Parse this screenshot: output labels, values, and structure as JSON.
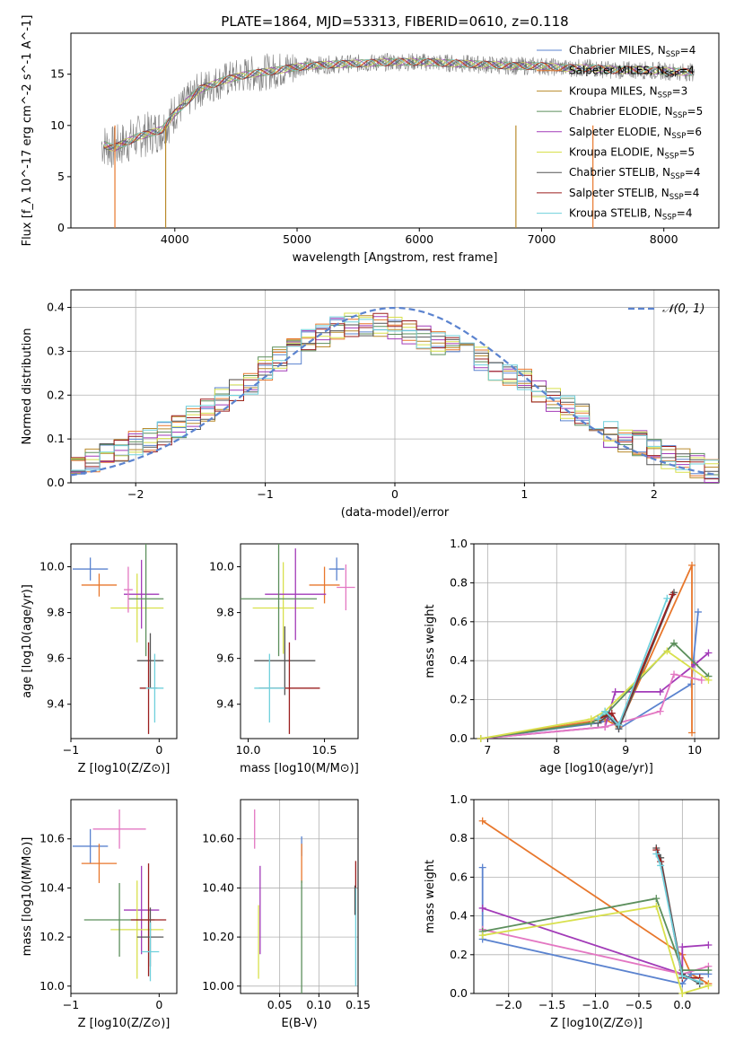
{
  "chart_data": [
    {
      "type": "line",
      "title": "PLATE=1864, MJD=53313, FIBERID=0610, z=0.118",
      "xlabel": "wavelength [Angstrom, rest frame]",
      "ylabel": "Flux [f_λ 10^-17 erg cm^-2 s^-1 A^-1]",
      "xlim": [
        3150,
        8450
      ],
      "ylim": [
        0,
        19
      ],
      "xticks": [
        4000,
        5000,
        6000,
        7000,
        8000
      ],
      "yticks": [
        0,
        5,
        10,
        15
      ],
      "legend_position": "right",
      "data_shape": {
        "x": [
          3400,
          3500,
          3700,
          3900,
          4000,
          4200,
          4400,
          4600,
          4800,
          5000,
          5200,
          5400,
          5600,
          5800,
          6000,
          6200,
          6400,
          6600,
          6800,
          7000,
          7200,
          7400,
          7600,
          7800,
          8000,
          8200
        ],
        "y": [
          8.2,
          7.8,
          8.9,
          9.6,
          11.2,
          13.5,
          14.4,
          15.0,
          15.3,
          15.7,
          15.9,
          16.0,
          16.1,
          16.2,
          16.2,
          16.1,
          16.0,
          15.9,
          15.8,
          15.8,
          15.6,
          15.6,
          15.4,
          15.4,
          15.3,
          15.2
        ]
      },
      "legend": [
        {
          "main": "Chabrier MILES, N",
          "sub": "SSP",
          "tail": "=4",
          "color": "#5b83cf"
        },
        {
          "main": "Salpeter MILES, N",
          "sub": "SSP",
          "tail": "=4",
          "color": "#e8772c"
        },
        {
          "main": "Kroupa MILES, N",
          "sub": "SSP",
          "tail": "=3",
          "color": "#b98b2c"
        },
        {
          "main": "Chabrier ELODIE, N",
          "sub": "SSP",
          "tail": "=5",
          "color": "#5c8f5c"
        },
        {
          "main": "Salpeter ELODIE, N",
          "sub": "SSP",
          "tail": "=6",
          "color": "#a23bb8"
        },
        {
          "main": "Kroupa ELODIE, N",
          "sub": "SSP",
          "tail": "=5",
          "color": "#d8e04c"
        },
        {
          "main": "Chabrier STELIB, N",
          "sub": "SSP",
          "tail": "=4",
          "color": "#555555"
        },
        {
          "main": "Salpeter STELIB, N",
          "sub": "SSP",
          "tail": "=4",
          "color": "#9b1f1f"
        },
        {
          "main": "Kroupa STELIB, N",
          "sub": "SSP",
          "tail": "=4",
          "color": "#6fd0dc"
        }
      ]
    },
    {
      "type": "line",
      "xlabel": "(data-model)/error",
      "ylabel": "Normed distribution",
      "xlim": [
        -2.5,
        2.5
      ],
      "ylim": [
        0,
        0.44
      ],
      "xticks": [
        -2,
        -1,
        0,
        1,
        2
      ],
      "yticks": [
        0.0,
        0.1,
        0.2,
        0.3,
        0.4
      ],
      "grid": true,
      "legend_position": "top-right",
      "legend": "𝒩(0, 1)",
      "histogram_center": [
        0.03,
        0.05,
        0.06,
        0.07,
        0.09,
        0.1,
        0.11,
        0.13,
        0.15,
        0.17,
        0.19,
        0.21,
        0.23,
        0.26,
        0.28,
        0.3,
        0.32,
        0.34,
        0.35,
        0.36,
        0.36,
        0.36,
        0.35,
        0.34,
        0.33,
        0.32,
        0.31,
        0.3,
        0.28,
        0.26,
        0.25,
        0.23,
        0.21,
        0.19,
        0.17,
        0.15,
        0.13,
        0.11,
        0.1,
        0.09,
        0.07,
        0.06,
        0.05,
        0.04,
        0.03
      ]
    },
    {
      "type": "scatter",
      "xlabel": "Z [log10(Z/Z⊙)]",
      "ylabel": "age [log10(age/yr)]",
      "xlim": [
        -1.0,
        0.2
      ],
      "ylim": [
        9.25,
        10.1
      ],
      "xticks": [
        -1,
        0
      ],
      "yticks": [
        9.4,
        9.6,
        9.8,
        10.0
      ],
      "points": [
        {
          "x": -0.78,
          "y": 9.99,
          "xerr": 0.2,
          "yerr": 0.05,
          "color": "#5b83cf"
        },
        {
          "x": -0.68,
          "y": 9.92,
          "xerr": 0.2,
          "yerr": 0.05,
          "color": "#e8772c"
        },
        {
          "x": -0.25,
          "y": 9.82,
          "xerr": 0.3,
          "yerr": 0.15,
          "color": "#d8e04c"
        },
        {
          "x": -0.2,
          "y": 9.88,
          "xerr": 0.2,
          "yerr": 0.15,
          "color": "#a23bb8"
        },
        {
          "x": -0.15,
          "y": 9.86,
          "xerr": 0.2,
          "yerr": 0.25,
          "color": "#5c8f5c"
        },
        {
          "x": -0.1,
          "y": 9.59,
          "xerr": 0.15,
          "yerr": 0.12,
          "color": "#555555"
        },
        {
          "x": -0.12,
          "y": 9.47,
          "xerr": 0.1,
          "yerr": 0.2,
          "color": "#9b1f1f"
        },
        {
          "x": -0.05,
          "y": 9.47,
          "xerr": 0.1,
          "yerr": 0.15,
          "color": "#6fd0dc"
        },
        {
          "x": -0.35,
          "y": 9.9,
          "xerr": 0.05,
          "yerr": 0.1,
          "color": "#e377c2"
        }
      ]
    },
    {
      "type": "scatter",
      "xlabel": "mass [log10(M/M⊙)]",
      "xlim": [
        9.95,
        10.72
      ],
      "ylim": [
        9.25,
        10.1
      ],
      "xticks": [
        10.0,
        10.5
      ],
      "yticks": [
        9.4,
        9.6,
        9.8,
        10.0
      ],
      "points": [
        {
          "x": 10.58,
          "y": 9.99,
          "xerr": 0.05,
          "yerr": 0.05,
          "color": "#5b83cf"
        },
        {
          "x": 10.5,
          "y": 9.92,
          "xerr": 0.1,
          "yerr": 0.08,
          "color": "#e8772c"
        },
        {
          "x": 10.23,
          "y": 9.82,
          "xerr": 0.2,
          "yerr": 0.2,
          "color": "#d8e04c"
        },
        {
          "x": 10.31,
          "y": 9.88,
          "xerr": 0.2,
          "yerr": 0.2,
          "color": "#a23bb8"
        },
        {
          "x": 10.2,
          "y": 9.86,
          "xerr": 0.25,
          "yerr": 0.25,
          "color": "#5c8f5c"
        },
        {
          "x": 10.24,
          "y": 9.59,
          "xerr": 0.2,
          "yerr": 0.15,
          "color": "#555555"
        },
        {
          "x": 10.27,
          "y": 9.47,
          "xerr": 0.2,
          "yerr": 0.2,
          "color": "#9b1f1f"
        },
        {
          "x": 10.14,
          "y": 9.47,
          "xerr": 0.1,
          "yerr": 0.15,
          "color": "#6fd0dc"
        },
        {
          "x": 10.64,
          "y": 9.91,
          "xerr": 0.06,
          "yerr": 0.1,
          "color": "#e377c2"
        }
      ]
    },
    {
      "type": "line",
      "xlabel": "age [log10(age/yr)]",
      "ylabel": "mass weight",
      "xlim": [
        6.8,
        10.35
      ],
      "ylim": [
        0,
        1.0
      ],
      "xticks": [
        7,
        8,
        9,
        10
      ],
      "yticks": [
        0.0,
        0.2,
        0.4,
        0.6,
        0.8,
        1.0
      ],
      "grid": true,
      "series": [
        {
          "color": "#5b83cf",
          "x": [
            6.9,
            8.6,
            8.8,
            8.9,
            9.95,
            10.05
          ],
          "y": [
            0.0,
            0.08,
            0.1,
            0.05,
            0.28,
            0.65
          ]
        },
        {
          "color": "#e8772c",
          "x": [
            6.9,
            8.7,
            8.9,
            9.96,
            9.96
          ],
          "y": [
            0.0,
            0.1,
            0.06,
            0.89,
            0.03
          ]
        },
        {
          "color": "#a23bb8",
          "x": [
            6.9,
            8.7,
            8.85,
            9.5,
            10.0,
            10.2
          ],
          "y": [
            0.0,
            0.06,
            0.24,
            0.24,
            0.38,
            0.44
          ]
        },
        {
          "color": "#e377c2",
          "x": [
            6.9,
            8.7,
            9.5,
            9.7,
            10.1
          ],
          "y": [
            0.0,
            0.06,
            0.14,
            0.33,
            0.3
          ]
        },
        {
          "color": "#5c8f5c",
          "x": [
            6.9,
            8.5,
            8.7,
            9.7,
            10.2
          ],
          "y": [
            0.0,
            0.08,
            0.12,
            0.49,
            0.32
          ]
        },
        {
          "color": "#d8e04c",
          "x": [
            6.9,
            8.5,
            8.7,
            9.6,
            10.2
          ],
          "y": [
            0.0,
            0.1,
            0.14,
            0.45,
            0.3
          ]
        },
        {
          "color": "#555555",
          "x": [
            8.6,
            8.75,
            8.9,
            9.7
          ],
          "y": [
            0.08,
            0.12,
            0.05,
            0.75
          ]
        },
        {
          "color": "#9b1f1f",
          "x": [
            8.6,
            8.8,
            8.9,
            9.68
          ],
          "y": [
            0.1,
            0.13,
            0.07,
            0.74
          ]
        },
        {
          "color": "#6fd0dc",
          "x": [
            8.6,
            8.7,
            8.9,
            9.6
          ],
          "y": [
            0.1,
            0.14,
            0.07,
            0.72
          ]
        }
      ]
    },
    {
      "type": "scatter",
      "xlabel": "Z [log10(Z/Z⊙)]",
      "ylabel": "mass [log10(M/M⊙)]",
      "xlim": [
        -1.0,
        0.2
      ],
      "ylim": [
        9.97,
        10.76
      ],
      "xticks": [
        -1,
        0
      ],
      "yticks": [
        10.0,
        10.2,
        10.4,
        10.6
      ],
      "points": [
        {
          "x": -0.78,
          "y": 10.57,
          "xerr": 0.2,
          "yerr": 0.07,
          "color": "#5b83cf"
        },
        {
          "x": -0.68,
          "y": 10.5,
          "xerr": 0.2,
          "yerr": 0.08,
          "color": "#e8772c"
        },
        {
          "x": -0.45,
          "y": 10.64,
          "xerr": 0.3,
          "yerr": 0.08,
          "color": "#e377c2"
        },
        {
          "x": -0.2,
          "y": 10.31,
          "xerr": 0.2,
          "yerr": 0.18,
          "color": "#a23bb8"
        },
        {
          "x": -0.25,
          "y": 10.23,
          "xerr": 0.3,
          "yerr": 0.2,
          "color": "#d8e04c"
        },
        {
          "x": -0.45,
          "y": 10.27,
          "xerr": 0.4,
          "yerr": 0.15,
          "color": "#5c8f5c"
        },
        {
          "x": -0.12,
          "y": 10.27,
          "xerr": 0.2,
          "yerr": 0.23,
          "color": "#9b1f1f"
        },
        {
          "x": -0.1,
          "y": 10.2,
          "xerr": 0.15,
          "yerr": 0.12,
          "color": "#555555"
        },
        {
          "x": -0.1,
          "y": 10.14,
          "xerr": 0.1,
          "yerr": 0.12,
          "color": "#6fd0dc"
        }
      ]
    },
    {
      "type": "scatter",
      "xlabel": "E(B-V)",
      "xlim": [
        0.0,
        0.15
      ],
      "ylim": [
        9.97,
        10.76
      ],
      "xticks": [
        0.05,
        0.1,
        0.15
      ],
      "yticks": [
        10.0,
        10.2,
        10.4,
        10.6
      ],
      "grid": true,
      "points": [
        {
          "x": 0.018,
          "y": 10.64,
          "yerr": 0.08,
          "color": "#e377c2"
        },
        {
          "x": 0.025,
          "y": 10.31,
          "yerr": 0.18,
          "color": "#a23bb8"
        },
        {
          "x": 0.023,
          "y": 10.18,
          "yerr": 0.15,
          "color": "#d8e04c"
        },
        {
          "x": 0.078,
          "y": 10.57,
          "yerr": 0.04,
          "color": "#5b83cf"
        },
        {
          "x": 0.078,
          "y": 10.5,
          "yerr": 0.08,
          "color": "#e8772c"
        },
        {
          "x": 0.078,
          "y": 10.2,
          "yerr": 0.23,
          "color": "#5c8f5c"
        },
        {
          "x": 0.147,
          "y": 10.45,
          "yerr": 0.06,
          "color": "#9b1f1f"
        },
        {
          "x": 0.147,
          "y": 10.2,
          "yerr": 0.2,
          "color": "#6fd0dc"
        },
        {
          "x": 0.146,
          "y": 10.35,
          "yerr": 0.06,
          "color": "#555555"
        }
      ]
    },
    {
      "type": "line",
      "xlabel": "Z [log10(Z/Z⊙)]",
      "ylabel": "mass weight",
      "xlim": [
        -2.4,
        0.42
      ],
      "ylim": [
        0,
        1.0
      ],
      "xticks": [
        -2.0,
        -1.5,
        -1.0,
        -0.5,
        0.0
      ],
      "yticks": [
        0.0,
        0.2,
        0.4,
        0.6,
        0.8,
        1.0
      ],
      "grid": true,
      "series": [
        {
          "color": "#e8772c",
          "x": [
            -2.3,
            0.0,
            0.1,
            0.3
          ],
          "y": [
            0.89,
            0.2,
            0.1,
            0.05
          ]
        },
        {
          "color": "#5b83cf",
          "x": [
            -2.3,
            -2.3,
            0.0,
            0.1,
            0.3
          ],
          "y": [
            0.65,
            0.28,
            0.05,
            0.1,
            0.1
          ]
        },
        {
          "color": "#a23bb8",
          "x": [
            -2.3,
            0.0,
            0.0,
            0.3
          ],
          "y": [
            0.44,
            0.1,
            0.24,
            0.25
          ]
        },
        {
          "color": "#e377c2",
          "x": [
            -2.3,
            0.0,
            0.3
          ],
          "y": [
            0.33,
            0.1,
            0.14
          ]
        },
        {
          "color": "#5c8f5c",
          "x": [
            -2.3,
            -0.3,
            0.0,
            0.3
          ],
          "y": [
            0.32,
            0.49,
            0.12,
            0.12
          ]
        },
        {
          "color": "#d8e04c",
          "x": [
            -2.3,
            -0.3,
            0.0,
            0.3
          ],
          "y": [
            0.3,
            0.45,
            0.0,
            0.04
          ]
        },
        {
          "color": "#555555",
          "x": [
            -0.3,
            -0.25,
            0.0,
            0.2
          ],
          "y": [
            0.75,
            0.7,
            0.1,
            0.05
          ]
        },
        {
          "color": "#9b1f1f",
          "x": [
            -0.3,
            -0.25,
            0.0,
            0.2
          ],
          "y": [
            0.74,
            0.68,
            0.08,
            0.08
          ]
        },
        {
          "color": "#6fd0dc",
          "x": [
            -0.3,
            -0.25,
            0.0,
            0.2
          ],
          "y": [
            0.72,
            0.66,
            0.09,
            0.06
          ]
        }
      ]
    }
  ]
}
